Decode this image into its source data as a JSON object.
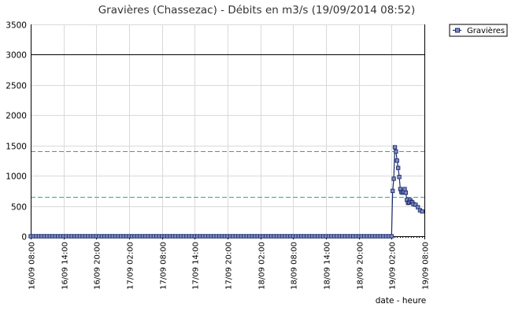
{
  "chart_data": {
    "type": "line",
    "title": "Gravières (Chassezac) - Débits en m3/s (19/09/2014 08:52)",
    "xlabel": "date - heure",
    "ylabel": "",
    "ylim": [
      0,
      3500
    ],
    "yticks": [
      0,
      500,
      1000,
      1500,
      2000,
      2500,
      3000,
      3500
    ],
    "xlim_hours": [
      0,
      72
    ],
    "xticks": [
      {
        "h": 0,
        "label": "16/09 08:00"
      },
      {
        "h": 6,
        "label": "16/09 14:00"
      },
      {
        "h": 12,
        "label": "16/09 20:00"
      },
      {
        "h": 18,
        "label": "17/09 02:00"
      },
      {
        "h": 24,
        "label": "17/09 08:00"
      },
      {
        "h": 30,
        "label": "17/09 14:00"
      },
      {
        "h": 36,
        "label": "17/09 20:00"
      },
      {
        "h": 42,
        "label": "18/09 02:00"
      },
      {
        "h": 48,
        "label": "18/09 08:00"
      },
      {
        "h": 54,
        "label": "18/09 14:00"
      },
      {
        "h": 60,
        "label": "18/09 20:00"
      },
      {
        "h": 66,
        "label": "19/09 02:00"
      },
      {
        "h": 72,
        "label": "19/09 08:00"
      }
    ],
    "grid": true,
    "legend_position": "top-right",
    "reference_lines": [
      {
        "value": 3000,
        "color": "#000000",
        "style": "solid"
      },
      {
        "value": 1400,
        "color": "#6e7fb3",
        "style": "dashed"
      },
      {
        "value": 650,
        "color": "#2aa7a7",
        "style": "dashed"
      }
    ],
    "series": [
      {
        "name": "Gravières",
        "color": "#1c2b6b",
        "points": [
          [
            0,
            0
          ],
          [
            0.5,
            0
          ],
          [
            1,
            0
          ],
          [
            1.5,
            0
          ],
          [
            2,
            0
          ],
          [
            2.5,
            0
          ],
          [
            3,
            0
          ],
          [
            3.5,
            0
          ],
          [
            4,
            0
          ],
          [
            4.5,
            0
          ],
          [
            5,
            0
          ],
          [
            5.5,
            0
          ],
          [
            6,
            0
          ],
          [
            6.5,
            0
          ],
          [
            7,
            0
          ],
          [
            7.5,
            0
          ],
          [
            8,
            0
          ],
          [
            8.5,
            0
          ],
          [
            9,
            0
          ],
          [
            9.5,
            0
          ],
          [
            10,
            0
          ],
          [
            10.5,
            0
          ],
          [
            11,
            0
          ],
          [
            11.5,
            0
          ],
          [
            12,
            0
          ],
          [
            12.5,
            0
          ],
          [
            13,
            0
          ],
          [
            13.5,
            0
          ],
          [
            14,
            0
          ],
          [
            14.5,
            0
          ],
          [
            15,
            0
          ],
          [
            15.5,
            0
          ],
          [
            16,
            0
          ],
          [
            16.5,
            0
          ],
          [
            17,
            0
          ],
          [
            17.5,
            0
          ],
          [
            18,
            0
          ],
          [
            18.5,
            0
          ],
          [
            19,
            0
          ],
          [
            19.5,
            0
          ],
          [
            20,
            0
          ],
          [
            20.5,
            0
          ],
          [
            21,
            0
          ],
          [
            21.5,
            0
          ],
          [
            22,
            0
          ],
          [
            22.5,
            0
          ],
          [
            23,
            0
          ],
          [
            23.5,
            0
          ],
          [
            24,
            0
          ],
          [
            24.5,
            0
          ],
          [
            25,
            0
          ],
          [
            25.5,
            0
          ],
          [
            26,
            0
          ],
          [
            26.5,
            0
          ],
          [
            27,
            0
          ],
          [
            27.5,
            0
          ],
          [
            28,
            0
          ],
          [
            28.5,
            0
          ],
          [
            29,
            0
          ],
          [
            29.5,
            0
          ],
          [
            30,
            0
          ],
          [
            30.5,
            0
          ],
          [
            31,
            0
          ],
          [
            31.5,
            0
          ],
          [
            32,
            0
          ],
          [
            32.5,
            0
          ],
          [
            33,
            0
          ],
          [
            33.5,
            0
          ],
          [
            34,
            0
          ],
          [
            34.5,
            0
          ],
          [
            35,
            0
          ],
          [
            35.5,
            0
          ],
          [
            36,
            0
          ],
          [
            36.5,
            0
          ],
          [
            37,
            0
          ],
          [
            37.5,
            0
          ],
          [
            38,
            0
          ],
          [
            38.5,
            0
          ],
          [
            39,
            0
          ],
          [
            39.5,
            0
          ],
          [
            40,
            0
          ],
          [
            40.5,
            0
          ],
          [
            41,
            0
          ],
          [
            41.5,
            0
          ],
          [
            42,
            0
          ],
          [
            42.5,
            0
          ],
          [
            43,
            0
          ],
          [
            43.5,
            0
          ],
          [
            44,
            0
          ],
          [
            44.5,
            0
          ],
          [
            45,
            0
          ],
          [
            45.5,
            0
          ],
          [
            46,
            0
          ],
          [
            46.5,
            0
          ],
          [
            47,
            0
          ],
          [
            47.5,
            0
          ],
          [
            48,
            0
          ],
          [
            48.5,
            0
          ],
          [
            49,
            0
          ],
          [
            49.5,
            0
          ],
          [
            50,
            0
          ],
          [
            50.5,
            0
          ],
          [
            51,
            0
          ],
          [
            51.5,
            0
          ],
          [
            52,
            0
          ],
          [
            52.5,
            0
          ],
          [
            53,
            0
          ],
          [
            53.5,
            0
          ],
          [
            54,
            0
          ],
          [
            54.5,
            0
          ],
          [
            55,
            0
          ],
          [
            55.5,
            0
          ],
          [
            56,
            0
          ],
          [
            56.5,
            0
          ],
          [
            57,
            0
          ],
          [
            57.5,
            0
          ],
          [
            58,
            0
          ],
          [
            58.5,
            0
          ],
          [
            59,
            0
          ],
          [
            59.5,
            0
          ],
          [
            60,
            0
          ],
          [
            60.5,
            0
          ],
          [
            61,
            0
          ],
          [
            61.5,
            0
          ],
          [
            62,
            0
          ],
          [
            62.5,
            0
          ],
          [
            63,
            0
          ],
          [
            63.5,
            0
          ],
          [
            64,
            0
          ],
          [
            64.5,
            0
          ],
          [
            65,
            0
          ],
          [
            65.5,
            0
          ],
          [
            66,
            0
          ],
          [
            66.2,
            750
          ],
          [
            66.4,
            950
          ],
          [
            66.6,
            1470
          ],
          [
            66.8,
            1400
          ],
          [
            67,
            1250
          ],
          [
            67.2,
            1130
          ],
          [
            67.4,
            980
          ],
          [
            67.6,
            780
          ],
          [
            67.8,
            730
          ],
          [
            68,
            720
          ],
          [
            68.2,
            740
          ],
          [
            68.4,
            780
          ],
          [
            68.6,
            720
          ],
          [
            68.8,
            600
          ],
          [
            69,
            550
          ],
          [
            69.2,
            560
          ],
          [
            69.4,
            600
          ],
          [
            69.6,
            570
          ],
          [
            69.8,
            560
          ],
          [
            70,
            530
          ],
          [
            70.4,
            520
          ],
          [
            70.8,
            480
          ],
          [
            71.2,
            430
          ],
          [
            71.6,
            410
          ]
        ]
      }
    ]
  }
}
